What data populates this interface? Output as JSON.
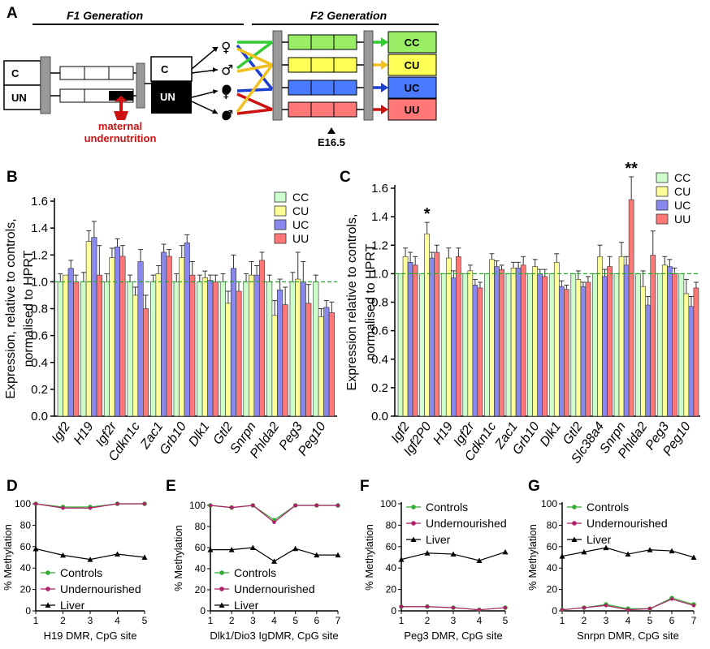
{
  "panel_labels": [
    "A",
    "B",
    "C",
    "D",
    "E",
    "F",
    "G"
  ],
  "schematic": {
    "f1_header": "F1 Generation",
    "f2_header": "F2 Generation",
    "f0_boxes": [
      "C",
      "UN"
    ],
    "f1_box": [
      "C",
      "UN"
    ],
    "symbols": [
      "♀",
      "♂",
      "♀",
      "♂"
    ],
    "annotation_line1": "maternal",
    "annotation_line2": "undernutrition",
    "timepoint": "E16.5",
    "groups": [
      {
        "label": "CC",
        "color": "#33cc33",
        "fill": "#99ee66"
      },
      {
        "label": "CU",
        "color": "#f0c020",
        "fill": "#ffff55"
      },
      {
        "label": "UC",
        "color": "#1d3fd1",
        "fill": "#4a7aff"
      },
      {
        "label": "UU",
        "color": "#cc1111",
        "fill": "#ff7777"
      }
    ]
  },
  "legend_groups": [
    {
      "name": "CC",
      "color": "#ccffcc"
    },
    {
      "name": "CU",
      "color": "#ffff99"
    },
    {
      "name": "UC",
      "color": "#8888ee"
    },
    {
      "name": "UU",
      "color": "#ff7777"
    }
  ],
  "chart_data": [
    {
      "panel": "B",
      "type": "bar",
      "ylabel_line1": "Expression, relative to controls,",
      "ylabel_line2": "normalised to HPRT",
      "ylim": [
        0,
        1.6
      ],
      "yticks": [
        "0.0",
        "0.2",
        "0.4",
        "0.6",
        "0.8",
        "1.0",
        "1.2",
        "1.4",
        "1.6"
      ],
      "reference_line": 1.0,
      "categories": [
        "Igf2",
        "H19",
        "Igf2r",
        "Cdkn1c",
        "Zac1",
        "Grb10",
        "Dlk1",
        "Gtl2",
        "Snrpn",
        "Phlda2",
        "Peg3",
        "Peg10"
      ],
      "series": [
        {
          "name": "CC",
          "values": [
            1.0,
            1.0,
            1.0,
            1.0,
            1.0,
            1.0,
            1.0,
            1.0,
            1.0,
            1.0,
            1.0,
            1.0
          ],
          "errors": [
            0.06,
            0.07,
            0.06,
            0.05,
            0.05,
            0.06,
            0.05,
            0.06,
            0.06,
            0.05,
            0.07,
            0.05
          ]
        },
        {
          "name": "CU",
          "values": [
            1.05,
            1.3,
            1.18,
            0.9,
            1.06,
            1.18,
            1.03,
            0.84,
            1.05,
            0.75,
            1.02,
            0.74
          ]
        },
        {
          "name": "UC",
          "values": [
            1.1,
            1.33,
            1.26,
            1.15,
            1.22,
            1.29,
            1.01,
            1.1,
            1.05,
            0.94,
            1.0,
            0.81
          ]
        },
        {
          "name": "UU",
          "values": [
            1.0,
            1.05,
            1.19,
            0.8,
            1.19,
            1.05,
            1.0,
            0.93,
            1.16,
            0.83,
            0.84,
            0.77
          ]
        }
      ],
      "error_top": [
        [
          1.05,
          1.38,
          1.25,
          0.96,
          1.12,
          1.27,
          1.08,
          0.93,
          1.15,
          0.86,
          1.22,
          0.8
        ],
        [
          1.16,
          1.45,
          1.32,
          1.24,
          1.28,
          1.35,
          1.05,
          1.2,
          1.12,
          1.02,
          1.15,
          0.86
        ],
        [
          1.05,
          1.27,
          1.27,
          0.9,
          1.24,
          1.15,
          1.05,
          1.0,
          1.22,
          0.96,
          0.98,
          0.85
        ]
      ]
    },
    {
      "panel": "C",
      "type": "bar",
      "ylabel_line1": "Expression relative to controls,",
      "ylabel_line2": "normalised to HPRT",
      "ylim": [
        0,
        1.6
      ],
      "yticks": [
        "0.0",
        "0.2",
        "0.4",
        "0.6",
        "0.8",
        "1.0",
        "1.2",
        "1.4",
        "1.6"
      ],
      "reference_line": 1.0,
      "categories": [
        "Igf2",
        "Igf2P0",
        "H19",
        "Igf2r",
        "Cdkn1c",
        "Zac1",
        "Grb10",
        "Dlk1",
        "Gtl2",
        "Slc38a4",
        "Snrpn",
        "Phlda2",
        "Peg3",
        "Peg10"
      ],
      "series": [
        {
          "name": "CC",
          "values": [
            1.0,
            1.0,
            1.0,
            1.0,
            1.0,
            1.0,
            1.0,
            1.0,
            1.0,
            1.0,
            1.0,
            1.0,
            1.0,
            1.0
          ]
        },
        {
          "name": "CU",
          "values": [
            1.12,
            1.28,
            1.11,
            1.02,
            1.1,
            1.04,
            1.05,
            1.08,
            0.96,
            1.12,
            1.12,
            0.91,
            1.06,
            0.86
          ]
        },
        {
          "name": "UC",
          "values": [
            1.08,
            1.11,
            0.97,
            0.92,
            1.05,
            1.04,
            1.0,
            0.91,
            0.91,
            0.98,
            1.06,
            0.78,
            1.05,
            0.77
          ]
        },
        {
          "name": "UU",
          "values": [
            1.06,
            1.15,
            1.12,
            0.9,
            1.03,
            1.06,
            0.98,
            0.89,
            0.94,
            1.05,
            1.52,
            1.13,
            1.0,
            0.9
          ]
        }
      ],
      "error_top": [
        [
          1.18,
          1.36,
          1.18,
          1.06,
          1.14,
          1.08,
          1.1,
          1.14,
          1.02,
          1.2,
          1.22,
          1.02,
          1.12,
          0.96
        ],
        [
          1.15,
          1.15,
          1.02,
          0.96,
          1.09,
          1.08,
          1.03,
          0.95,
          0.94,
          1.03,
          1.12,
          0.84,
          1.1,
          0.84
        ],
        [
          1.12,
          1.2,
          1.18,
          0.94,
          1.06,
          1.12,
          1.03,
          0.92,
          0.98,
          1.12,
          1.68,
          1.3,
          1.04,
          0.94
        ]
      ],
      "annotations": [
        {
          "category": "Igf2P0",
          "series": "CU",
          "text": "*"
        },
        {
          "category": "Snrpn",
          "series": "UU",
          "text": "**"
        }
      ]
    },
    {
      "panel": "D",
      "type": "line",
      "xlabel": "H19 DMR, CpG site",
      "ylabel": "% Methylation",
      "ylim": [
        0,
        100
      ],
      "yticks": [
        "0",
        "20",
        "40",
        "60",
        "80",
        "100"
      ],
      "x": [
        1,
        2,
        3,
        4,
        5
      ],
      "legend_position": "bottom-left",
      "series": [
        {
          "name": "Controls",
          "values": [
            100,
            97,
            97,
            100,
            100
          ]
        },
        {
          "name": "Undernourished",
          "values": [
            100,
            96,
            96,
            100,
            100
          ]
        },
        {
          "name": "Liver",
          "values": [
            58,
            52,
            48,
            53,
            50
          ]
        }
      ]
    },
    {
      "panel": "E",
      "type": "line",
      "xlabel": "Dlk1/Dio3 IgDMR, CpG site",
      "ylabel": "% Methylation",
      "ylim": [
        0,
        100
      ],
      "yticks": [
        "0",
        "20",
        "40",
        "60",
        "80",
        "100"
      ],
      "x": [
        1,
        2,
        3,
        4,
        5,
        6,
        7
      ],
      "legend_position": "bottom-left",
      "series": [
        {
          "name": "Controls",
          "values": [
            100,
            98,
            100,
            86,
            100,
            100,
            100
          ]
        },
        {
          "name": "Undernourished",
          "values": [
            100,
            98,
            100,
            84,
            100,
            100,
            100
          ]
        },
        {
          "name": "Liver",
          "values": [
            58,
            58,
            60,
            47,
            59,
            53,
            53
          ]
        }
      ]
    },
    {
      "panel": "F",
      "type": "line",
      "xlabel": "Peg3 DMR, CpG site",
      "ylabel": "% Methylation",
      "ylim": [
        0,
        100
      ],
      "yticks": [
        "0",
        "20",
        "40",
        "60",
        "80",
        "100"
      ],
      "x": [
        1,
        2,
        3,
        4,
        5
      ],
      "legend_position": "top-left",
      "series": [
        {
          "name": "Controls",
          "values": [
            4,
            4,
            3,
            1,
            3
          ]
        },
        {
          "name": "Undernourished",
          "values": [
            4,
            4,
            3,
            1,
            3
          ]
        },
        {
          "name": "Liver",
          "values": [
            48,
            54,
            53,
            47,
            55
          ]
        }
      ]
    },
    {
      "panel": "G",
      "type": "line",
      "xlabel": "Snrpn DMR, CpG site",
      "ylabel": "% Methylation",
      "ylim": [
        0,
        100
      ],
      "yticks": [
        "0",
        "20",
        "40",
        "60",
        "80",
        "100"
      ],
      "x": [
        1,
        2,
        3,
        4,
        5,
        6,
        7
      ],
      "legend_position": "top-left",
      "series": [
        {
          "name": "Controls",
          "values": [
            1,
            3,
            6,
            2,
            2,
            12,
            6
          ]
        },
        {
          "name": "Undernourished",
          "values": [
            1,
            3,
            5,
            1,
            2,
            11,
            5
          ]
        },
        {
          "name": "Liver",
          "values": [
            51,
            55,
            59,
            53,
            57,
            56,
            50
          ]
        }
      ]
    }
  ],
  "line_colors": {
    "Controls": "#33aa33",
    "Undernourished": "#b0206a",
    "Liver": "#000000"
  },
  "reference_line_color": "#22aa22"
}
